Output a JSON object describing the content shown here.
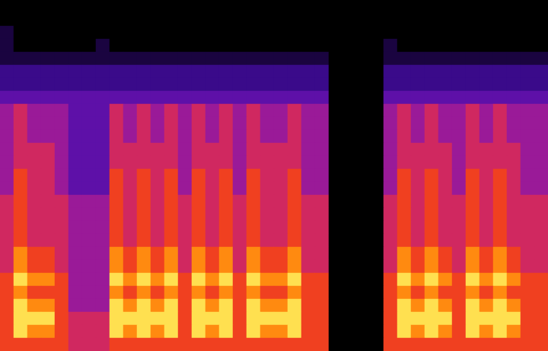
{
  "chart_data": {
    "type": "heatmap",
    "tick_labels": false,
    "zlim": [
      0,
      8
    ],
    "cells": [
      [
        0,
        0,
        0,
        0,
        0,
        0,
        0,
        0,
        0,
        0,
        0,
        0,
        0,
        0,
        0,
        0,
        0,
        0,
        0,
        0,
        0,
        0,
        0,
        0,
        0,
        0,
        0,
        0,
        0,
        0,
        0,
        0,
        0,
        0,
        0,
        0,
        0,
        0,
        0,
        0
      ],
      [
        0,
        0,
        0,
        0,
        0,
        0,
        0,
        0,
        0,
        0,
        0,
        0,
        0,
        0,
        0,
        0,
        0,
        0,
        0,
        0,
        0,
        0,
        0,
        0,
        0,
        0,
        0,
        0,
        0,
        0,
        0,
        0,
        0,
        0,
        0,
        0,
        0,
        0,
        0,
        0
      ],
      [
        1,
        0,
        0,
        0,
        0,
        0,
        0,
        0,
        0,
        0,
        0,
        0,
        0,
        0,
        0,
        0,
        0,
        0,
        0,
        0,
        0,
        0,
        0,
        0,
        0,
        0,
        0,
        0,
        0,
        0,
        0,
        0,
        0,
        0,
        0,
        0,
        0,
        0,
        0,
        0
      ],
      [
        1,
        0,
        0,
        0,
        0,
        0,
        0,
        1,
        0,
        0,
        0,
        0,
        0,
        0,
        0,
        0,
        0,
        0,
        0,
        0,
        0,
        0,
        0,
        0,
        0,
        0,
        0,
        0,
        1,
        0,
        0,
        0,
        0,
        0,
        0,
        0,
        0,
        0,
        0,
        0
      ],
      [
        1,
        1,
        1,
        1,
        1,
        1,
        1,
        1,
        1,
        1,
        1,
        1,
        1,
        1,
        1,
        1,
        1,
        1,
        1,
        1,
        1,
        1,
        1,
        1,
        0,
        0,
        0,
        0,
        1,
        1,
        1,
        1,
        1,
        1,
        1,
        1,
        1,
        1,
        1,
        1
      ],
      [
        2,
        2,
        2,
        2,
        2,
        2,
        2,
        2,
        2,
        2,
        2,
        2,
        2,
        2,
        2,
        2,
        2,
        2,
        2,
        2,
        2,
        2,
        2,
        2,
        0,
        0,
        0,
        0,
        2,
        2,
        2,
        2,
        2,
        2,
        2,
        2,
        2,
        2,
        2,
        2
      ],
      [
        2,
        2,
        2,
        2,
        2,
        2,
        2,
        2,
        2,
        2,
        2,
        2,
        2,
        2,
        2,
        2,
        2,
        2,
        2,
        2,
        2,
        2,
        2,
        2,
        0,
        0,
        0,
        0,
        2,
        2,
        2,
        2,
        2,
        2,
        2,
        2,
        2,
        2,
        2,
        2
      ],
      [
        3,
        3,
        3,
        3,
        3,
        3,
        3,
        3,
        3,
        3,
        3,
        3,
        3,
        3,
        3,
        3,
        3,
        3,
        3,
        3,
        3,
        3,
        3,
        3,
        0,
        0,
        0,
        0,
        3,
        3,
        3,
        3,
        3,
        3,
        3,
        3,
        3,
        3,
        3,
        3
      ],
      [
        4,
        5,
        4,
        4,
        4,
        3,
        3,
        3,
        5,
        4,
        5,
        4,
        5,
        4,
        5,
        4,
        5,
        4,
        5,
        4,
        4,
        5,
        4,
        4,
        0,
        0,
        0,
        0,
        4,
        5,
        4,
        5,
        4,
        4,
        5,
        4,
        5,
        4,
        4,
        4
      ],
      [
        4,
        5,
        4,
        4,
        4,
        3,
        3,
        3,
        5,
        4,
        5,
        4,
        5,
        4,
        5,
        4,
        5,
        4,
        5,
        4,
        4,
        5,
        4,
        4,
        0,
        0,
        0,
        0,
        4,
        5,
        4,
        5,
        4,
        4,
        5,
        4,
        5,
        4,
        4,
        4
      ],
      [
        4,
        5,
        4,
        4,
        4,
        3,
        3,
        3,
        5,
        4,
        5,
        4,
        5,
        4,
        5,
        4,
        5,
        4,
        5,
        4,
        4,
        5,
        4,
        4,
        0,
        0,
        0,
        0,
        4,
        5,
        4,
        5,
        4,
        4,
        5,
        4,
        5,
        4,
        4,
        4
      ],
      [
        4,
        5,
        5,
        5,
        4,
        3,
        3,
        3,
        5,
        5,
        5,
        5,
        5,
        4,
        5,
        5,
        5,
        4,
        5,
        5,
        5,
        5,
        4,
        4,
        0,
        0,
        0,
        0,
        4,
        5,
        5,
        5,
        5,
        4,
        5,
        5,
        5,
        5,
        4,
        4
      ],
      [
        4,
        5,
        5,
        5,
        4,
        3,
        3,
        3,
        5,
        5,
        5,
        5,
        5,
        4,
        5,
        5,
        5,
        4,
        5,
        5,
        5,
        5,
        4,
        4,
        0,
        0,
        0,
        0,
        4,
        5,
        5,
        5,
        5,
        4,
        5,
        5,
        5,
        5,
        4,
        4
      ],
      [
        4,
        6,
        5,
        5,
        4,
        3,
        3,
        3,
        6,
        5,
        6,
        5,
        6,
        4,
        6,
        5,
        6,
        4,
        6,
        5,
        5,
        6,
        4,
        4,
        0,
        0,
        0,
        0,
        4,
        6,
        5,
        6,
        5,
        4,
        6,
        5,
        6,
        5,
        4,
        4
      ],
      [
        4,
        6,
        5,
        5,
        4,
        3,
        3,
        3,
        6,
        5,
        6,
        5,
        6,
        4,
        6,
        5,
        6,
        4,
        6,
        5,
        5,
        6,
        4,
        4,
        0,
        0,
        0,
        0,
        4,
        6,
        5,
        6,
        5,
        4,
        6,
        5,
        6,
        5,
        4,
        4
      ],
      [
        5,
        6,
        5,
        5,
        5,
        4,
        4,
        4,
        6,
        5,
        6,
        5,
        6,
        5,
        6,
        5,
        6,
        5,
        6,
        5,
        5,
        6,
        5,
        5,
        0,
        0,
        0,
        0,
        5,
        6,
        5,
        6,
        5,
        5,
        6,
        5,
        6,
        5,
        5,
        5
      ],
      [
        5,
        6,
        5,
        5,
        5,
        4,
        4,
        4,
        6,
        5,
        6,
        5,
        6,
        5,
        6,
        5,
        6,
        5,
        6,
        5,
        5,
        6,
        5,
        5,
        0,
        0,
        0,
        0,
        5,
        6,
        5,
        6,
        5,
        5,
        6,
        5,
        6,
        5,
        5,
        5
      ],
      [
        5,
        6,
        5,
        5,
        5,
        4,
        4,
        4,
        6,
        5,
        6,
        5,
        6,
        5,
        6,
        5,
        6,
        5,
        6,
        5,
        5,
        6,
        5,
        5,
        0,
        0,
        0,
        0,
        5,
        6,
        5,
        6,
        5,
        5,
        6,
        5,
        6,
        5,
        5,
        5
      ],
      [
        5,
        6,
        5,
        5,
        5,
        4,
        4,
        4,
        6,
        5,
        6,
        5,
        6,
        5,
        6,
        5,
        6,
        5,
        6,
        5,
        5,
        6,
        5,
        5,
        0,
        0,
        0,
        0,
        5,
        6,
        5,
        6,
        5,
        5,
        6,
        5,
        6,
        5,
        5,
        5
      ],
      [
        5,
        7,
        6,
        6,
        5,
        4,
        4,
        4,
        7,
        6,
        7,
        6,
        7,
        5,
        7,
        6,
        7,
        5,
        7,
        6,
        6,
        7,
        5,
        5,
        0,
        0,
        0,
        0,
        5,
        7,
        6,
        7,
        6,
        5,
        7,
        6,
        7,
        6,
        5,
        5
      ],
      [
        5,
        7,
        6,
        6,
        5,
        4,
        4,
        4,
        7,
        6,
        7,
        6,
        7,
        5,
        7,
        6,
        7,
        5,
        7,
        6,
        6,
        7,
        5,
        5,
        0,
        0,
        0,
        0,
        5,
        7,
        6,
        7,
        6,
        5,
        7,
        6,
        7,
        6,
        5,
        5
      ],
      [
        6,
        8,
        7,
        7,
        6,
        4,
        4,
        4,
        8,
        7,
        8,
        7,
        8,
        6,
        8,
        7,
        8,
        6,
        8,
        7,
        7,
        8,
        6,
        6,
        0,
        0,
        0,
        0,
        6,
        8,
        7,
        8,
        7,
        6,
        8,
        7,
        8,
        7,
        6,
        6
      ],
      [
        6,
        7,
        6,
        6,
        6,
        4,
        4,
        4,
        7,
        6,
        7,
        6,
        7,
        6,
        7,
        6,
        7,
        6,
        7,
        6,
        6,
        7,
        6,
        6,
        0,
        0,
        0,
        0,
        6,
        7,
        6,
        7,
        6,
        6,
        7,
        6,
        7,
        6,
        6,
        6
      ],
      [
        6,
        8,
        7,
        7,
        6,
        4,
        4,
        4,
        8,
        7,
        8,
        7,
        8,
        6,
        8,
        7,
        8,
        6,
        8,
        7,
        7,
        8,
        6,
        6,
        0,
        0,
        0,
        0,
        6,
        8,
        7,
        8,
        7,
        6,
        8,
        7,
        8,
        7,
        6,
        6
      ],
      [
        6,
        8,
        8,
        8,
        6,
        5,
        5,
        5,
        8,
        8,
        8,
        8,
        8,
        6,
        8,
        8,
        8,
        6,
        8,
        8,
        8,
        8,
        6,
        6,
        0,
        0,
        0,
        0,
        6,
        8,
        8,
        8,
        8,
        6,
        8,
        8,
        8,
        8,
        6,
        6
      ],
      [
        6,
        8,
        7,
        7,
        6,
        5,
        5,
        5,
        8,
        7,
        8,
        7,
        8,
        6,
        8,
        7,
        8,
        6,
        8,
        7,
        7,
        8,
        6,
        6,
        0,
        0,
        0,
        0,
        6,
        8,
        7,
        8,
        7,
        6,
        8,
        7,
        8,
        7,
        6,
        6
      ],
      [
        6,
        6,
        6,
        6,
        6,
        5,
        5,
        5,
        6,
        6,
        6,
        6,
        6,
        6,
        6,
        6,
        6,
        6,
        6,
        6,
        6,
        6,
        6,
        6,
        0,
        0,
        0,
        0,
        6,
        6,
        6,
        6,
        6,
        6,
        6,
        6,
        6,
        6,
        6,
        6
      ]
    ]
  }
}
